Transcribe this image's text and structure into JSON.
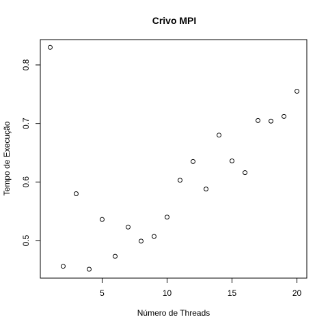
{
  "chart_data": {
    "type": "scatter",
    "title": "Crivo MPI",
    "xlabel": "Número de Threads",
    "ylabel": "Tempo de Execução",
    "xlim": [
      0.24,
      20.76
    ],
    "ylim": [
      0.4358,
      0.8432
    ],
    "x_ticks": [
      5,
      10,
      15,
      20
    ],
    "y_ticks": [
      0.5,
      0.6,
      0.7,
      0.8
    ],
    "x_tick_labels": [
      "5",
      "10",
      "15",
      "20"
    ],
    "y_tick_labels": [
      "0.5",
      "0.6",
      "0.7",
      "0.8"
    ],
    "grid": false,
    "legend": "none",
    "marker": "open-circle",
    "colors": {
      "points": "#000000",
      "axes": "#000000",
      "background": "#ffffff"
    },
    "series": [
      {
        "x": [
          1,
          2,
          3,
          4,
          5,
          6,
          7,
          8,
          9,
          10,
          11,
          12,
          13,
          14,
          15,
          16,
          17,
          18,
          19,
          20
        ],
        "y": [
          0.83,
          0.456,
          0.58,
          0.451,
          0.536,
          0.473,
          0.523,
          0.499,
          0.507,
          0.54,
          0.603,
          0.635,
          0.588,
          0.68,
          0.636,
          0.616,
          0.705,
          0.704,
          0.712,
          0.755
        ]
      }
    ]
  }
}
